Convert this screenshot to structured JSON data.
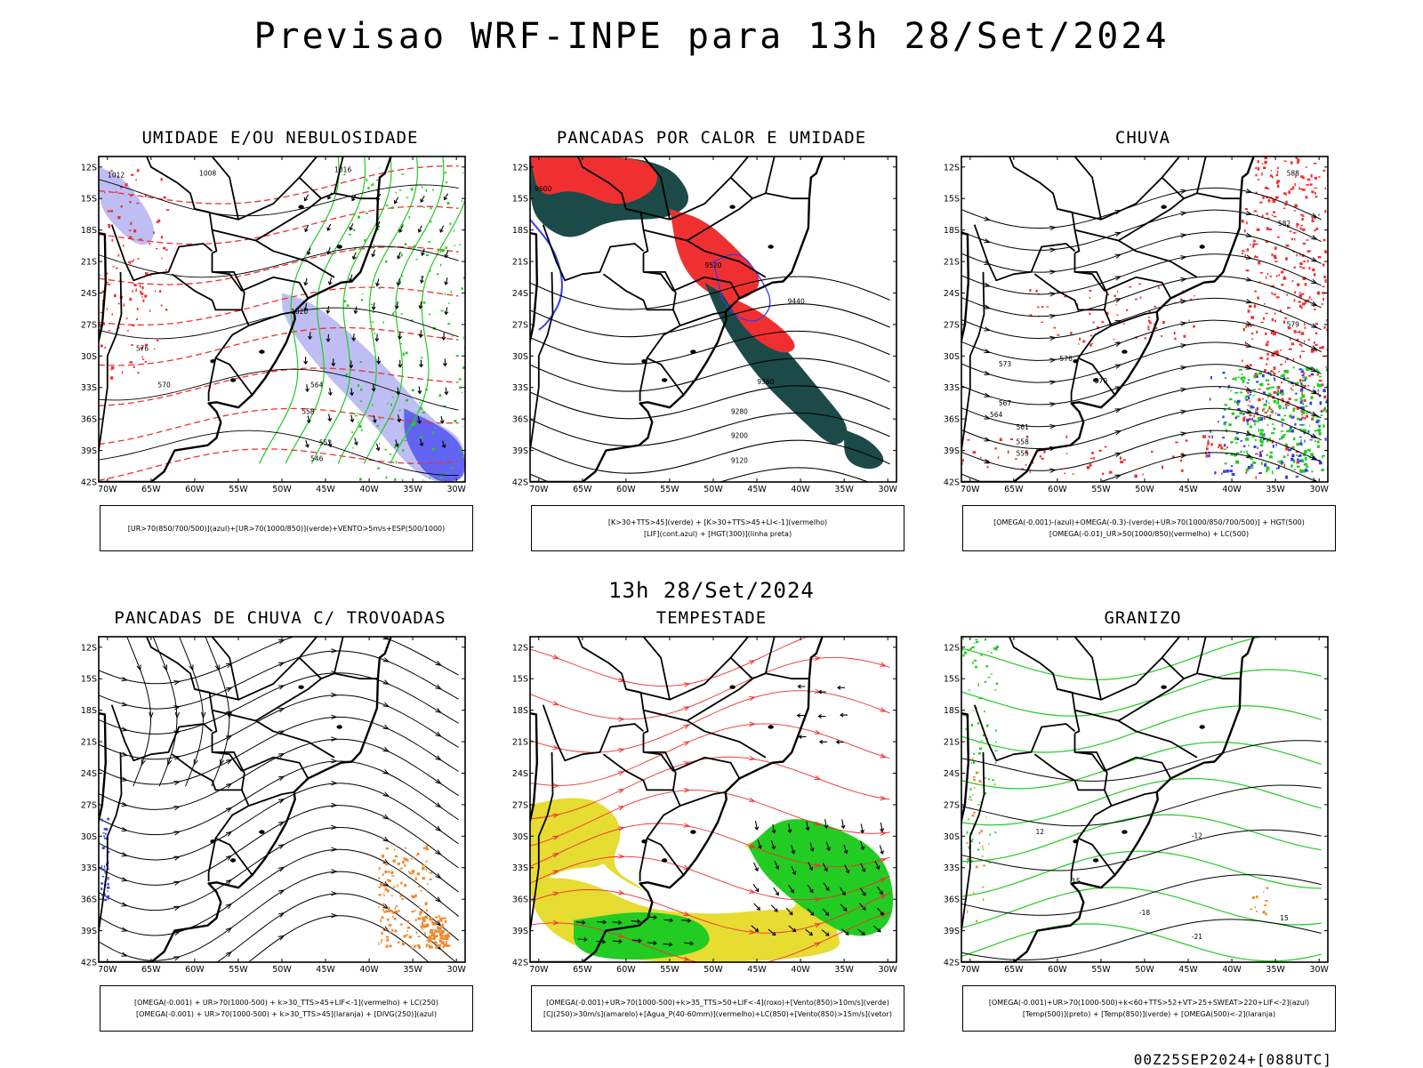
{
  "title": "Previsao WRF-INPE  para 13h 28/Set/2024",
  "mid_title": "13h 28/Set/2024",
  "footer": "00Z25SEP2024+[088UTC]",
  "axes": {
    "lat_labels": [
      "12S",
      "15S",
      "18S",
      "21S",
      "24S",
      "27S",
      "30S",
      "33S",
      "36S",
      "39S",
      "42S"
    ],
    "lon_labels": [
      "70W",
      "65W",
      "60W",
      "55W",
      "50W",
      "45W",
      "40W",
      "35W",
      "30W"
    ]
  },
  "colors": {
    "frame": "#000000",
    "blue": "#3a3cf0",
    "light_blue": "#a8a8f0",
    "green": "#22cc22",
    "red": "#f03030",
    "dark_teal": "#1c4a48",
    "yellow": "#e6dc32",
    "orange": "#ee8a30"
  },
  "panels": [
    {
      "title": "UMIDADE E/OU NEBULOSIDADE",
      "legend": [
        "[UR>70(850/700/500)](azul)+[UR>70(1000/850)](verde)+VENTO>5m/s+ESP(500/1000)"
      ],
      "contour_labels": [
        "1012",
        "1008",
        "1016",
        "1020",
        "576",
        "570",
        "564",
        "558",
        "552",
        "546"
      ]
    },
    {
      "title": "PANCADAS POR CALOR E UMIDADE",
      "legend": [
        "[K>30+TTS>45](verde) + [K>30+TTS>45+LI<-1](vermelho)",
        "[LIF](cont.azul) + [HGT(300)](linha preta)"
      ],
      "contour_labels": [
        "9600",
        "9520",
        "9440",
        "9360",
        "9280",
        "9200",
        "9120"
      ]
    },
    {
      "title": "CHUVA",
      "legend": [
        "[OMEGA(-0.001)-(azul)+OMEGA(-0.3)-(verde)+UR>70(1000/850/700/500)] + HGT(500)",
        "[OMEGA(-0.01)_UR>50(1000/850)(vermelho) + LC(500)"
      ],
      "contour_labels": [
        "588",
        "582",
        "579",
        "576",
        "573",
        "570",
        "567",
        "564",
        "561",
        "558",
        "555"
      ]
    },
    {
      "title": "PANCADAS DE CHUVA C/ TROVOADAS",
      "legend": [
        "[OMEGA(-0.001) + UR>70(1000-500) + k>30_TTS>45+LIF<-1](vermelho) + LC(250)",
        "[OMEGA(-0.001) + UR>70(1000-500) + k>30_TTS>45](laranja) + [DIVG(250)](azul)"
      ],
      "contour_labels": []
    },
    {
      "title": "TEMPESTADE",
      "legend": [
        "[OMEGA(-0.001)+UR>70(1000-500)+k>35_TTS>50+LIF<-4](roxo)+[Vento(850)>10m/s](verde)",
        "[CJ(250)>30m/s](amarelo)+[Agua_P(40-60mm)](vermelho)+LC(850)+[Vento(850)>15m/s](vetor)"
      ],
      "contour_labels": []
    },
    {
      "title": "GRANIZO",
      "legend": [
        "[OMEGA(-0.001)+UR>70(1000-500)+k<60+TTS>52+VT>25+SWEAT>220+LIF<-2](azul)",
        "[Temp(500)](preto) + [Temp(850)](verde) + [OMEGA(500)<-2](laranja)"
      ],
      "contour_labels": [
        "-12",
        "-15",
        "-18",
        "-21",
        "12",
        "15"
      ]
    }
  ]
}
